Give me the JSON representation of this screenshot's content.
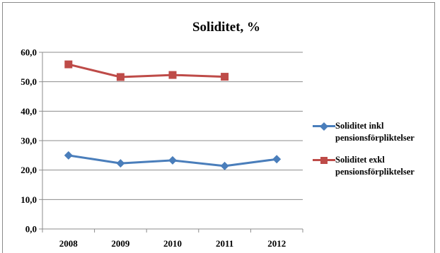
{
  "chart_data": {
    "type": "line",
    "title": "Soliditet, %",
    "categories": [
      "2008",
      "2009",
      "2010",
      "2011",
      "2012"
    ],
    "ylim": [
      0,
      60
    ],
    "yticks": [
      0,
      10,
      20,
      30,
      40,
      50,
      60
    ],
    "ytick_labels": [
      "0,0",
      "10,0",
      "20,0",
      "30,0",
      "40,0",
      "50,0",
      "60,0"
    ],
    "grid": true,
    "legend_position": "right",
    "series": [
      {
        "name": "Soliditet inkl pensionsförpliktelser",
        "name_lines": [
          "Soliditet inkl",
          "pensionsförpliktelser"
        ],
        "values": [
          25.0,
          22.3,
          23.3,
          21.4,
          23.7
        ],
        "color": "#4a7ebb",
        "marker": "diamond"
      },
      {
        "name": "Soliditet exkl pensionsförpliktelser",
        "name_lines": [
          "Soliditet exkl",
          "pensionsförpliktelser"
        ],
        "values": [
          55.9,
          51.6,
          52.3,
          51.7,
          null
        ],
        "color": "#be4b48",
        "marker": "square"
      }
    ]
  }
}
